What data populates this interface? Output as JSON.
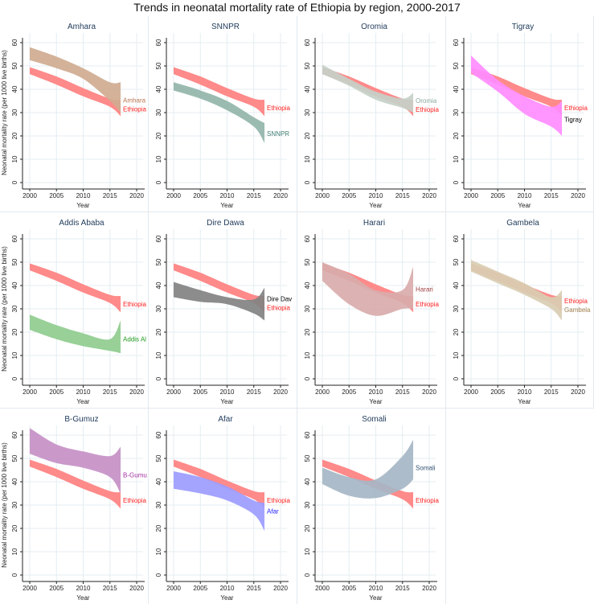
{
  "chart_data": {
    "type": "area",
    "title": "Trends in neonatal mortality rate of Ethiopia by region, 2000-2017",
    "xlabel": "Year",
    "ylabel": "Neonatal mortality rate (per 1000 live births)",
    "xlim": [
      2000,
      2020
    ],
    "ylim": [
      0,
      60
    ],
    "xticks": [
      2000,
      2005,
      2010,
      2015,
      2020
    ],
    "yticks": [
      0,
      10,
      20,
      30,
      40,
      50,
      60
    ],
    "grid": true,
    "years": [
      2000,
      2005,
      2010,
      2015,
      2017
    ],
    "reference": {
      "name": "Ethiopia",
      "color": "#ff8a8a",
      "label_color": "#ff2020",
      "label_value": 32,
      "lower": [
        46.5,
        42,
        37,
        32.5,
        28.5
      ],
      "upper": [
        49.5,
        45.5,
        40.5,
        36,
        35.5
      ]
    },
    "panels": [
      {
        "name": "Amhara",
        "color": "#cfab90",
        "label_color": "#b87450",
        "label_value": 35,
        "lower": [
          52.5,
          49,
          44.5,
          35,
          30
        ],
        "upper": [
          58,
          54,
          49,
          43,
          43
        ]
      },
      {
        "name": "SNNPR",
        "color": "#93b5aa",
        "label_color": "#3f7e72",
        "label_value": 21,
        "lower": [
          39.5,
          36,
          31,
          24,
          17
        ],
        "upper": [
          43,
          39.5,
          35,
          28,
          25.5
        ]
      },
      {
        "name": "Oromia",
        "color": "#c6d0c8",
        "label_color": "#8aa89a",
        "label_value": 34.5,
        "lower": [
          46.5,
          41.5,
          35.5,
          32,
          30
        ],
        "upper": [
          50.5,
          44.5,
          39,
          36,
          38.5
        ]
      },
      {
        "name": "Tigray",
        "color": "#ff8cff",
        "label_color": "#000000",
        "label_value": 27,
        "lower": [
          47,
          39,
          29.5,
          24,
          20
        ],
        "upper": [
          54.5,
          44,
          37,
          32.5,
          35
        ]
      },
      {
        "name": "Addis Ababa",
        "short": "Addis Al",
        "color": "#8fcc8f",
        "label_color": "#1f9a1f",
        "label_value": 17,
        "lower": [
          21,
          17,
          14,
          12,
          11
        ],
        "upper": [
          27.5,
          23,
          19.5,
          17,
          25
        ]
      },
      {
        "name": "Dire Dawa",
        "short": "Dire Dav",
        "color": "#828282",
        "label_color": "#000000",
        "label_value": 33,
        "lower": [
          35,
          33,
          32,
          28,
          25
        ],
        "upper": [
          41.5,
          38,
          35,
          34,
          39
        ]
      },
      {
        "name": "Harari",
        "color": "#d9abab",
        "label_color": "#a04040",
        "label_value": 38.5,
        "lower": [
          42,
          32,
          27,
          30,
          30
        ],
        "upper": [
          50,
          45,
          38,
          38,
          48
        ]
      },
      {
        "name": "Gambela",
        "color": "#d9cdb2",
        "label_color": "#a08050",
        "label_value": 31,
        "lower": [
          46,
          41,
          36,
          30,
          25
        ],
        "upper": [
          51,
          46,
          41,
          35,
          38
        ]
      },
      {
        "name": "B-Gumuz",
        "short": "B-Gumu",
        "color": "#c690c6",
        "label_color": "#a030a0",
        "label_value": 43,
        "lower": [
          52,
          48,
          46,
          42,
          35
        ],
        "upper": [
          63,
          56,
          53,
          51,
          55
        ]
      },
      {
        "name": "Afar",
        "color": "#9c9cff",
        "label_color": "#2020ff",
        "label_value": 27.5,
        "lower": [
          37,
          35,
          32,
          26,
          19
        ],
        "upper": [
          44.5,
          42,
          38,
          32,
          31
        ]
      },
      {
        "name": "Somali",
        "color": "#a6b6c6",
        "label_color": "#305070",
        "label_value": 46,
        "lower": [
          39,
          34,
          33,
          37,
          41
        ],
        "upper": [
          46,
          42,
          41,
          51,
          58
        ]
      }
    ]
  }
}
